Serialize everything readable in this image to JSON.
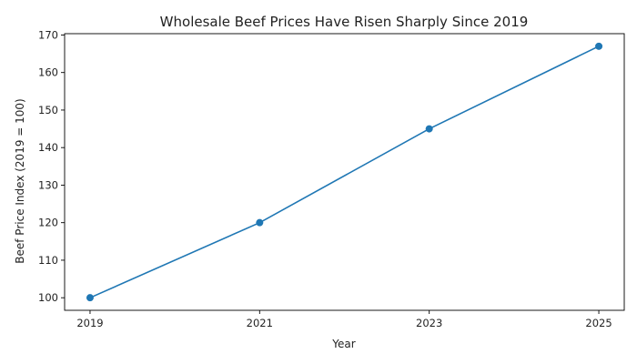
{
  "chart_data": {
    "type": "line",
    "title": "Wholesale Beef Prices Have Risen Sharply Since 2019",
    "xlabel": "Year",
    "ylabel": "Beef Price Index (2019 = 100)",
    "x": [
      2019,
      2021,
      2023,
      2025
    ],
    "series": [
      {
        "name": "",
        "values": [
          100,
          120,
          145,
          167
        ]
      }
    ],
    "xticks": [
      "2019",
      "2021",
      "2023",
      "2025"
    ],
    "yticks": [
      100,
      110,
      120,
      130,
      140,
      150,
      160,
      170
    ],
    "xlim": [
      2018.7,
      2025.3
    ],
    "ylim": [
      96.65,
      170.35
    ],
    "grid": false,
    "legend": "none",
    "colors": {
      "line": "#1f77b4",
      "axes": "#000000",
      "text": "#222222"
    }
  }
}
